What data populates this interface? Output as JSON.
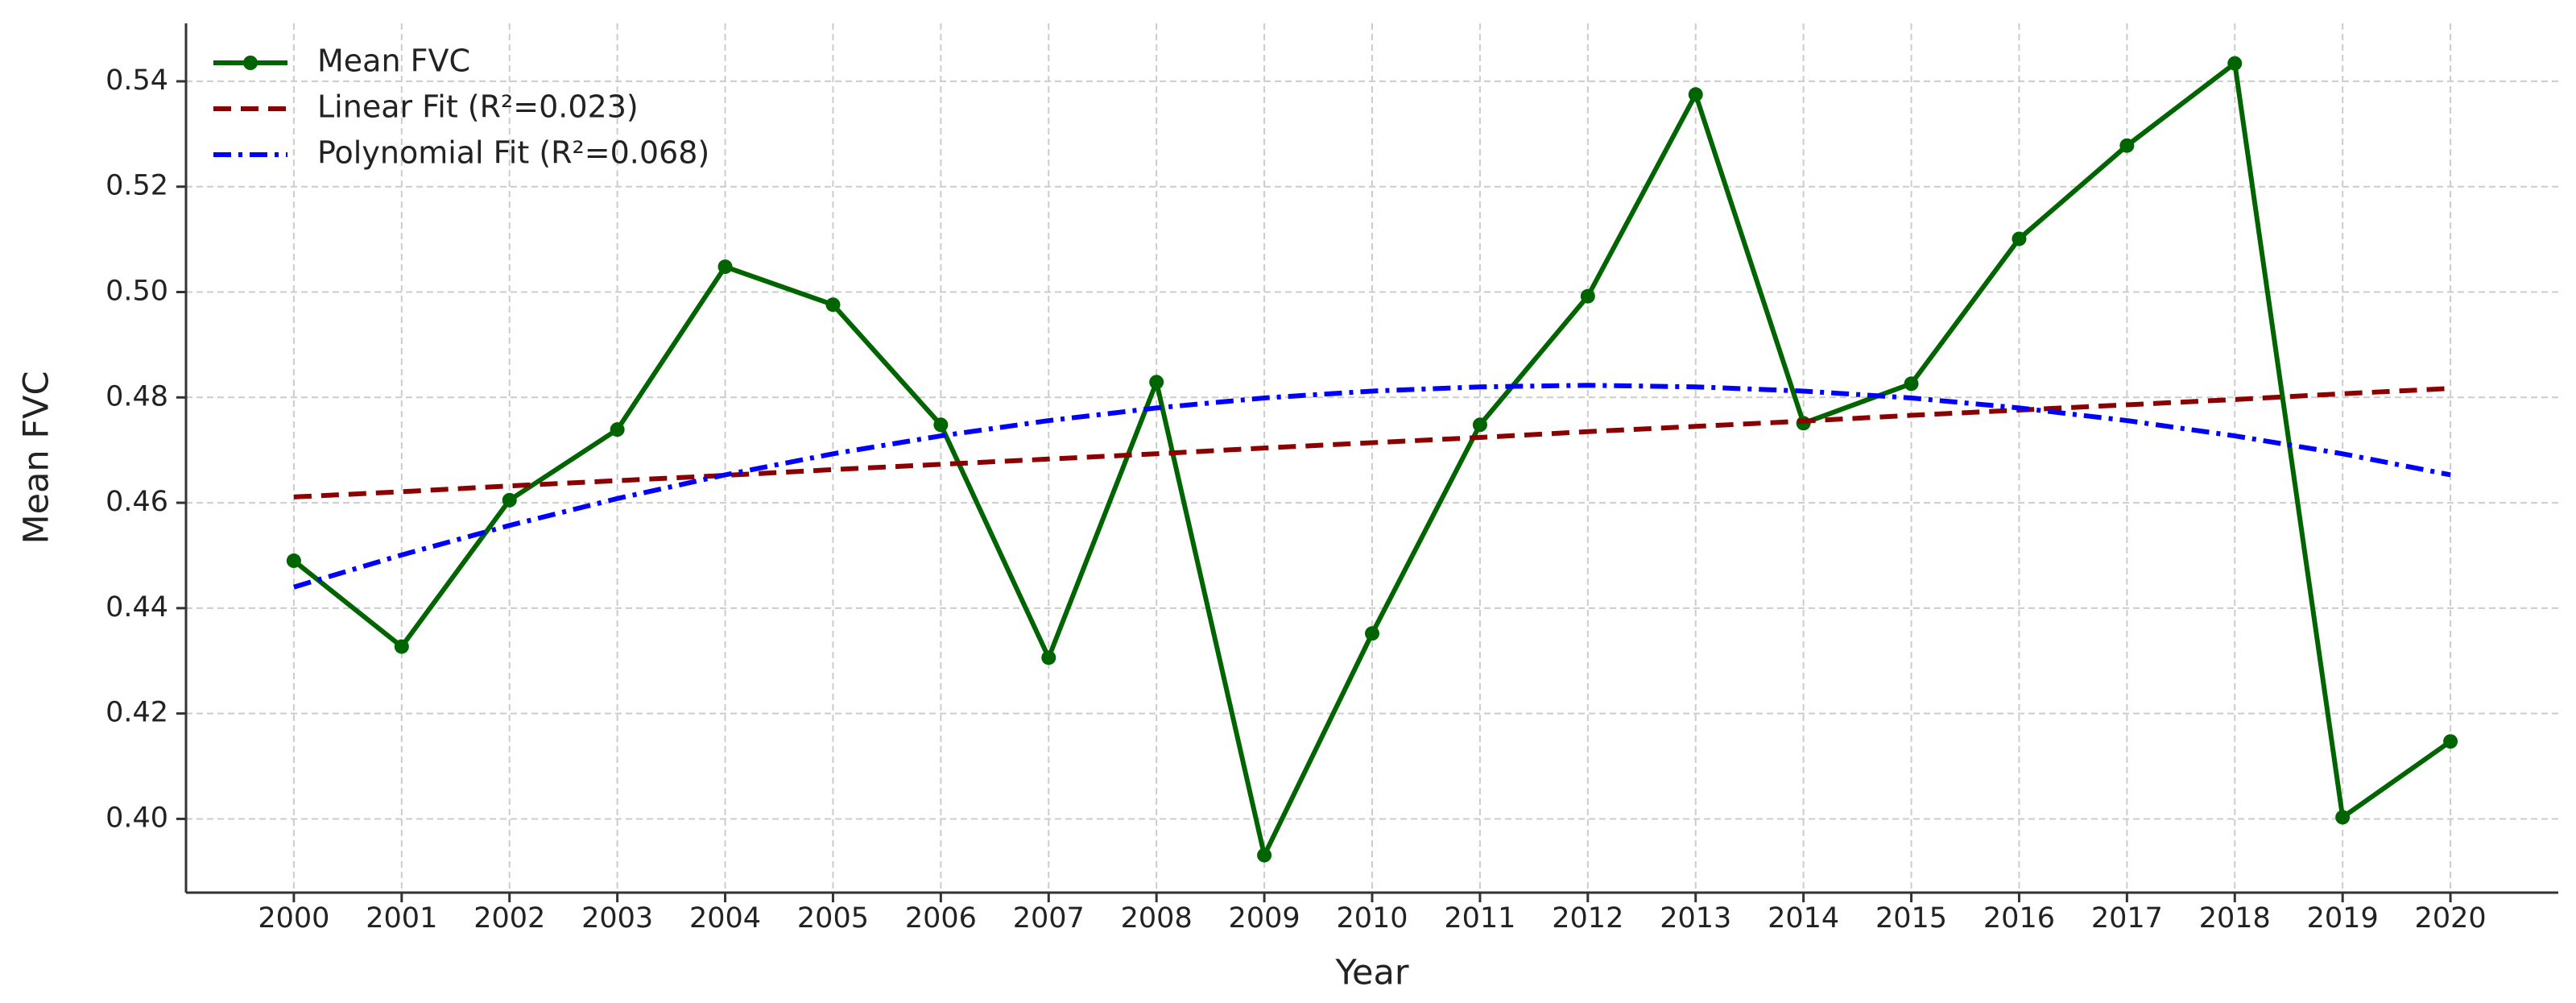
{
  "chart_data": {
    "type": "line",
    "xlabel": "Year",
    "ylabel": "Mean FVC",
    "x": [
      2000,
      2001,
      2002,
      2003,
      2004,
      2005,
      2006,
      2007,
      2008,
      2009,
      2010,
      2011,
      2012,
      2013,
      2014,
      2015,
      2016,
      2017,
      2018,
      2019,
      2020
    ],
    "series": [
      {
        "name": "Mean FVC",
        "color": "#006400",
        "linestyle": "solid",
        "marker": "o",
        "values": [
          0.449,
          0.4327,
          0.4605,
          0.4739,
          0.5048,
          0.4976,
          0.4748,
          0.4306,
          0.4829,
          0.3931,
          0.4352,
          0.4748,
          0.4992,
          0.5375,
          0.4751,
          0.4826,
          0.5101,
          0.5278,
          0.5434,
          0.4003,
          0.4147
        ]
      },
      {
        "name": "Linear Fit (R²=0.023)",
        "color": "#8b0000",
        "linestyle": "dashed",
        "values": [
          0.4611,
          0.4621,
          0.4632,
          0.4642,
          0.4652,
          0.4663,
          0.4673,
          0.4683,
          0.4693,
          0.4704,
          0.4714,
          0.4724,
          0.4735,
          0.4745,
          0.4755,
          0.4766,
          0.4776,
          0.4786,
          0.4796,
          0.4807,
          0.4817
        ]
      },
      {
        "name": "Polynomial Fit (R²=0.068)",
        "color": "#0000ff",
        "linestyle": "dashdot",
        "values": [
          0.444,
          0.4501,
          0.4557,
          0.4608,
          0.4653,
          0.4693,
          0.4727,
          0.4756,
          0.478,
          0.4799,
          0.4812,
          0.482,
          0.4823,
          0.482,
          0.4812,
          0.4799,
          0.478,
          0.4756,
          0.4727,
          0.4693,
          0.4653
        ]
      }
    ],
    "xlim": [
      1999,
      2021
    ],
    "xticks": [
      2000,
      2001,
      2002,
      2003,
      2004,
      2005,
      2006,
      2007,
      2008,
      2009,
      2010,
      2011,
      2012,
      2013,
      2014,
      2015,
      2016,
      2017,
      2018,
      2019,
      2020
    ],
    "ylim": [
      0.386,
      0.551
    ],
    "yticks": [
      {
        "value": 0.4,
        "label": "0.40"
      },
      0.42,
      0.44,
      0.46,
      0.48,
      {
        "value": 0.5,
        "label": "0.50"
      },
      0.52,
      0.54
    ],
    "grid": true,
    "legend": "upper left"
  }
}
